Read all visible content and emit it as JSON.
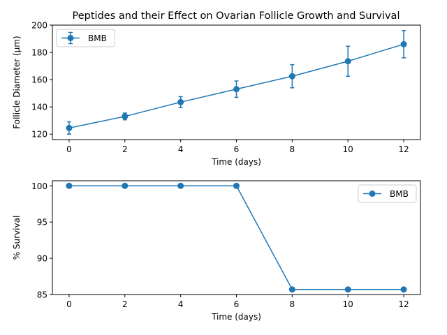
{
  "figure_title": "Peptides and their Effect on Ovarian Follicle Growth and Survival",
  "chart_data": [
    {
      "type": "line",
      "xlabel": "Time (days)",
      "ylabel": "Follicle Diameter (μm)",
      "xlim": [
        -0.6,
        12.6
      ],
      "ylim": [
        116,
        200
      ],
      "xticks": [
        0,
        2,
        4,
        6,
        8,
        10,
        12
      ],
      "yticks": [
        120,
        140,
        160,
        180,
        200
      ],
      "legend": "top-left",
      "grid": false,
      "x": [
        0,
        2,
        4,
        6,
        8,
        10,
        12
      ],
      "series": [
        {
          "name": "BMB",
          "color": "#1f77b4",
          "values": [
            124.5,
            133.0,
            143.5,
            153.0,
            162.5,
            173.5,
            186.0
          ],
          "errors": [
            4.5,
            2.5,
            4.0,
            6.0,
            8.5,
            11.0,
            10.0
          ]
        }
      ]
    },
    {
      "type": "line",
      "xlabel": "Time (days)",
      "ylabel": "% Survival",
      "xlim": [
        -0.6,
        12.6
      ],
      "ylim": [
        85,
        100.7
      ],
      "xticks": [
        0,
        2,
        4,
        6,
        8,
        10,
        12
      ],
      "yticks": [
        85,
        90,
        95,
        100
      ],
      "legend": "top-right",
      "grid": false,
      "x": [
        0,
        2,
        4,
        6,
        8,
        10,
        12
      ],
      "series": [
        {
          "name": "BMB",
          "color": "#1f77b4",
          "values": [
            100,
            100,
            100,
            100,
            85.7,
            85.7,
            85.7
          ]
        }
      ]
    }
  ]
}
